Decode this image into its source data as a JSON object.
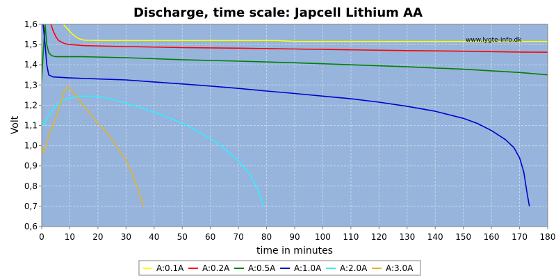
{
  "chart_data": {
    "type": "line",
    "title": "Discharge, time scale: Japcell Lithium AA",
    "xlabel": "time in minutes",
    "ylabel": "Volt",
    "xlim": [
      0,
      180
    ],
    "ylim": [
      0.6,
      1.6
    ],
    "x_ticks": [
      "0",
      "10",
      "20",
      "30",
      "40",
      "50",
      "60",
      "70",
      "80",
      "90",
      "100",
      "110",
      "120",
      "130",
      "140",
      "150",
      "160",
      "170",
      "180"
    ],
    "y_ticks": [
      "0,6",
      "0,7",
      "0,8",
      "0,9",
      "1,0",
      "1,1",
      "1,2",
      "1,3",
      "1,4",
      "1,5",
      "1,6"
    ],
    "grid": true,
    "legend_position": "bottom",
    "watermark": "www.lygte-info.dk",
    "colors": {
      "plot_background": "#96b4dc",
      "grid": "#c8d6ea"
    },
    "series": [
      {
        "name": "A:0.1A",
        "color": "#ffff00",
        "points": [
          [
            7.8,
            1.6
          ],
          [
            9,
            1.58
          ],
          [
            11,
            1.55
          ],
          [
            13,
            1.53
          ],
          [
            15,
            1.522
          ],
          [
            20,
            1.52
          ],
          [
            40,
            1.52
          ],
          [
            60,
            1.52
          ],
          [
            80,
            1.52
          ],
          [
            84,
            1.52
          ],
          [
            90,
            1.515
          ],
          [
            120,
            1.515
          ],
          [
            150,
            1.515
          ],
          [
            180,
            1.515
          ]
        ]
      },
      {
        "name": "A:0.2A",
        "color": "#ff0000",
        "points": [
          [
            3.3,
            1.6
          ],
          [
            4,
            1.57
          ],
          [
            5,
            1.54
          ],
          [
            6,
            1.52
          ],
          [
            8,
            1.505
          ],
          [
            10,
            1.5
          ],
          [
            15,
            1.495
          ],
          [
            30,
            1.49
          ],
          [
            50,
            1.485
          ],
          [
            70,
            1.482
          ],
          [
            90,
            1.478
          ],
          [
            110,
            1.474
          ],
          [
            130,
            1.47
          ],
          [
            150,
            1.467
          ],
          [
            170,
            1.463
          ],
          [
            180,
            1.462
          ]
        ]
      },
      {
        "name": "A:0.5A",
        "color": "#008000",
        "points": [
          [
            0,
            1.32
          ],
          [
            0.5,
            1.45
          ],
          [
            1.2,
            1.6
          ],
          [
            1.8,
            1.5
          ],
          [
            2.5,
            1.46
          ],
          [
            3.5,
            1.445
          ],
          [
            5,
            1.44
          ],
          [
            15,
            1.44
          ],
          [
            30,
            1.435
          ],
          [
            50,
            1.425
          ],
          [
            70,
            1.418
          ],
          [
            90,
            1.41
          ],
          [
            110,
            1.4
          ],
          [
            130,
            1.39
          ],
          [
            150,
            1.378
          ],
          [
            170,
            1.362
          ],
          [
            180,
            1.35
          ]
        ]
      },
      {
        "name": "A:1.0A",
        "color": "#0000cc",
        "points": [
          [
            0.5,
            1.6
          ],
          [
            1.2,
            1.5
          ],
          [
            1.8,
            1.4
          ],
          [
            2.5,
            1.35
          ],
          [
            4,
            1.34
          ],
          [
            10,
            1.335
          ],
          [
            20,
            1.33
          ],
          [
            30,
            1.325
          ],
          [
            40,
            1.315
          ],
          [
            50,
            1.305
          ],
          [
            60,
            1.295
          ],
          [
            70,
            1.283
          ],
          [
            80,
            1.27
          ],
          [
            90,
            1.258
          ],
          [
            100,
            1.245
          ],
          [
            110,
            1.232
          ],
          [
            120,
            1.215
          ],
          [
            130,
            1.195
          ],
          [
            140,
            1.17
          ],
          [
            150,
            1.135
          ],
          [
            155,
            1.11
          ],
          [
            160,
            1.075
          ],
          [
            165,
            1.03
          ],
          [
            168,
            0.99
          ],
          [
            170,
            0.94
          ],
          [
            171.5,
            0.87
          ],
          [
            172.5,
            0.78
          ],
          [
            173.5,
            0.7
          ]
        ]
      },
      {
        "name": "A:2.0A",
        "color": "#33eeff",
        "points": [
          [
            0,
            1.12
          ],
          [
            1,
            1.1
          ],
          [
            2,
            1.14
          ],
          [
            4,
            1.18
          ],
          [
            6,
            1.215
          ],
          [
            8,
            1.225
          ],
          [
            10,
            1.235
          ],
          [
            14,
            1.245
          ],
          [
            18,
            1.245
          ],
          [
            22,
            1.24
          ],
          [
            26,
            1.225
          ],
          [
            30,
            1.21
          ],
          [
            35,
            1.19
          ],
          [
            40,
            1.165
          ],
          [
            45,
            1.14
          ],
          [
            50,
            1.11
          ],
          [
            55,
            1.075
          ],
          [
            60,
            1.035
          ],
          [
            65,
            0.985
          ],
          [
            70,
            0.925
          ],
          [
            74,
            0.86
          ],
          [
            77,
            0.78
          ],
          [
            79,
            0.7
          ]
        ]
      },
      {
        "name": "A:3.0A",
        "color": "#e6b428",
        "points": [
          [
            0,
            1.0
          ],
          [
            0.6,
            0.965
          ],
          [
            1.5,
            1.0
          ],
          [
            3,
            1.07
          ],
          [
            5,
            1.13
          ],
          [
            6.5,
            1.2
          ],
          [
            8,
            1.27
          ],
          [
            9,
            1.29
          ],
          [
            10,
            1.285
          ],
          [
            12,
            1.25
          ],
          [
            14,
            1.215
          ],
          [
            16,
            1.18
          ],
          [
            18,
            1.145
          ],
          [
            20,
            1.11
          ],
          [
            22,
            1.08
          ],
          [
            24,
            1.05
          ],
          [
            26,
            1.01
          ],
          [
            28,
            0.97
          ],
          [
            30,
            0.93
          ],
          [
            32,
            0.87
          ],
          [
            34,
            0.8
          ],
          [
            35.5,
            0.73
          ],
          [
            36.2,
            0.7
          ]
        ]
      }
    ]
  }
}
